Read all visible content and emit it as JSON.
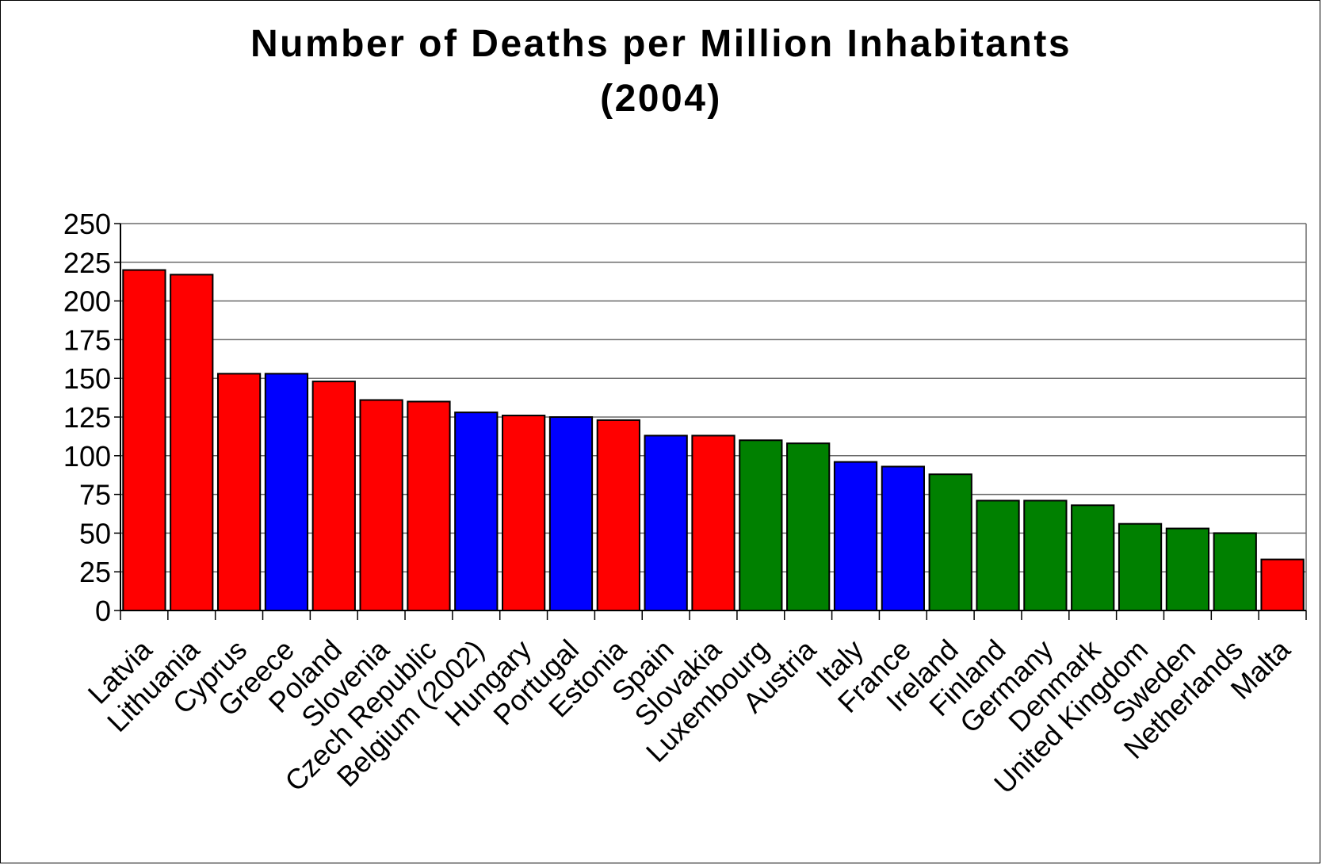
{
  "chart_data": {
    "type": "bar",
    "title": "Number of Deaths per Million Inhabitants",
    "subtitle": "(2004)",
    "xlabel": "",
    "ylabel": "",
    "ylim": [
      0,
      250
    ],
    "yticks": [
      0,
      25,
      50,
      75,
      100,
      125,
      150,
      175,
      200,
      225,
      250
    ],
    "grid": true,
    "legend": "none",
    "categories": [
      "Latvia",
      "Lithuania",
      "Cyprus",
      "Greece",
      "Poland",
      "Slovenia",
      "Czech Republic",
      "Belgium (2002)",
      "Hungary",
      "Portugal",
      "Estonia",
      "Spain",
      "Slovakia",
      "Luxembourg",
      "Austria",
      "Italy",
      "France",
      "Ireland",
      "Finland",
      "Germany",
      "Denmark",
      "United Kingdom",
      "Sweden",
      "Netherlands",
      "Malta"
    ],
    "values": [
      220,
      217,
      153,
      153,
      148,
      136,
      135,
      128,
      126,
      125,
      123,
      113,
      113,
      110,
      108,
      96,
      93,
      88,
      71,
      71,
      68,
      56,
      53,
      50,
      33
    ],
    "bar_colors": [
      "#ff0000",
      "#ff0000",
      "#ff0000",
      "#0000ff",
      "#ff0000",
      "#ff0000",
      "#ff0000",
      "#0000ff",
      "#ff0000",
      "#0000ff",
      "#ff0000",
      "#0000ff",
      "#ff0000",
      "#008000",
      "#008000",
      "#0000ff",
      "#0000ff",
      "#008000",
      "#008000",
      "#008000",
      "#008000",
      "#008000",
      "#008000",
      "#008000",
      "#ff0000"
    ]
  }
}
